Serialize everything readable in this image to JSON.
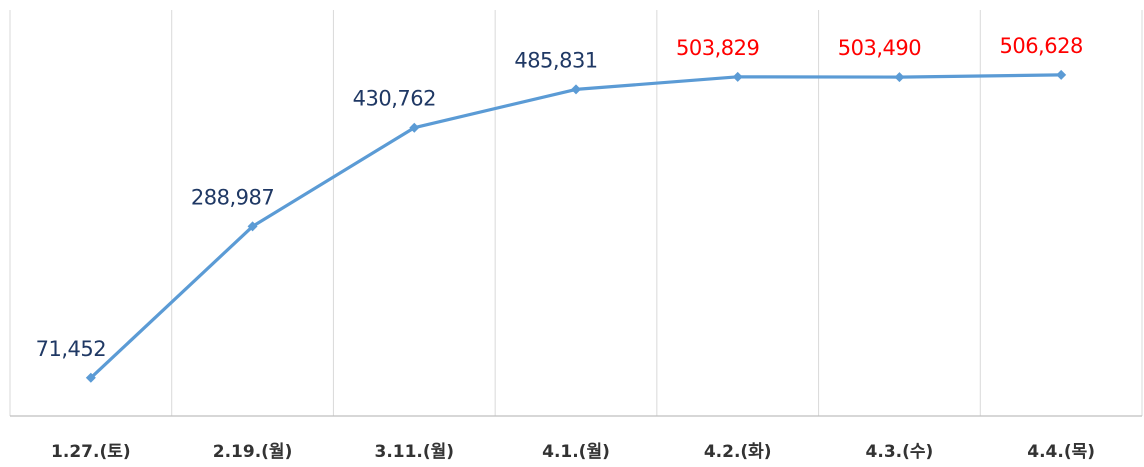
{
  "chart_data": {
    "type": "line",
    "categories": [
      "1.27.(토)",
      "2.19.(월)",
      "3.11.(월)",
      "4.1.(월)",
      "4.2.(화)",
      "4.3.(수)",
      "4.4.(목)"
    ],
    "series": [
      {
        "values": [
          71452,
          288987,
          430762,
          485831,
          503829,
          503490,
          506628
        ],
        "labels": [
          "71,452",
          "288,987",
          "430,762",
          "485,831",
          "503,829",
          "503,490",
          "506,628"
        ],
        "label_colors": [
          "#1f3864",
          "#1f3864",
          "#1f3864",
          "#1f3864",
          "#ff0000",
          "#ff0000",
          "#ff0000"
        ]
      }
    ],
    "title": "",
    "xlabel": "",
    "ylabel": "",
    "ylim": [
      0,
      560000
    ],
    "grid": "vertical",
    "legend": "none"
  },
  "colors": {
    "line": "#5b9bd5",
    "marker": "#5b9bd5",
    "label_default": "#1f3864",
    "label_highlight": "#ff0000"
  }
}
